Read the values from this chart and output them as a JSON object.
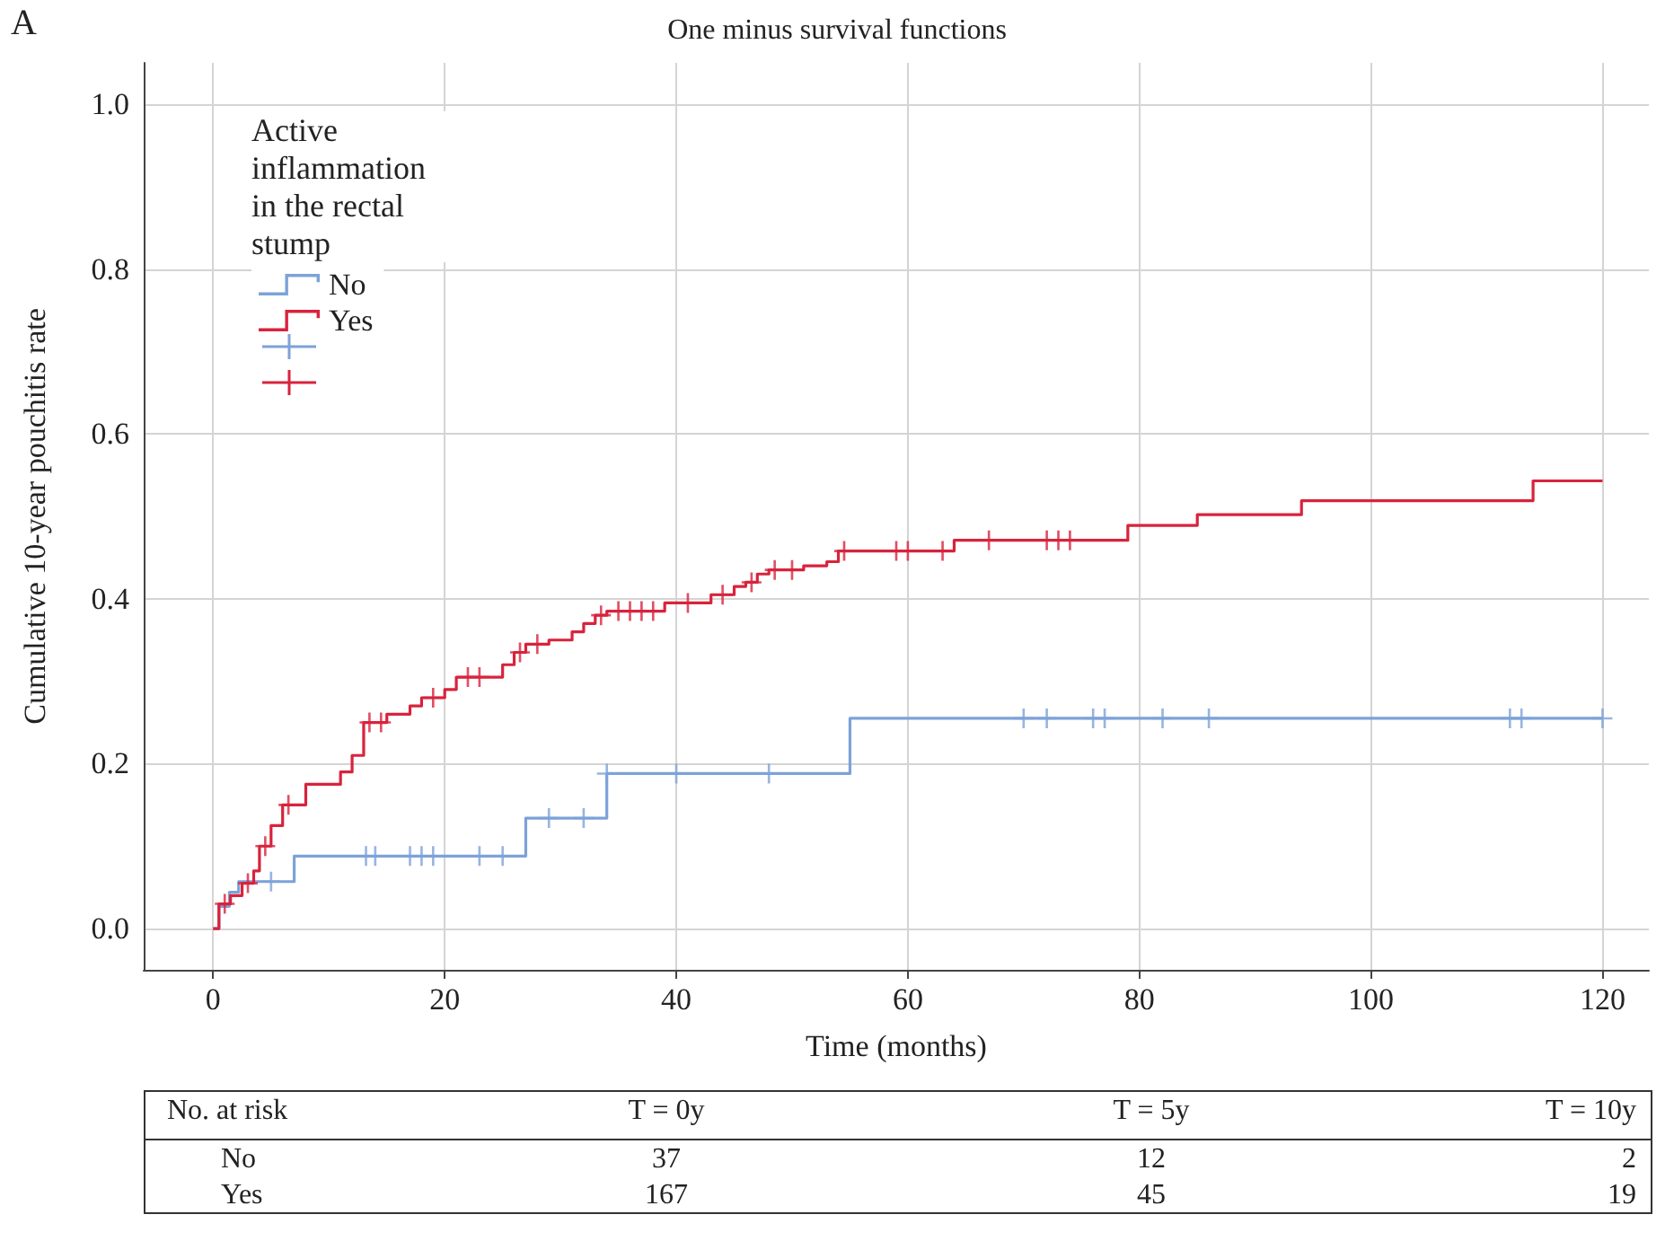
{
  "chart_data": {
    "type": "step",
    "title": "One minus survival functions",
    "xlabel": "Time (months)",
    "ylabel": "Cumulative 10-year pouchitis rate",
    "legend_title": "Active inflammation in the rectal stump",
    "legend": "top left",
    "grid": true,
    "xlim": [
      -6,
      124
    ],
    "xticks": [
      0,
      20,
      40,
      60,
      80,
      100,
      120
    ],
    "ylim": [
      -0.05,
      1.05
    ],
    "yticks": [
      {
        "value": 0,
        "label": "0.0"
      },
      {
        "value": 0.2,
        "label": "0.2"
      },
      {
        "value": 0.4,
        "label": "0.4"
      },
      {
        "value": 0.6,
        "label": "0.6"
      },
      {
        "value": 0.8,
        "label": "0.8"
      },
      {
        "value": 1,
        "label": "1.0"
      }
    ],
    "annotations": [
      "A",
      "No. at risk",
      "T = 0y",
      "T = 5y",
      "T = 10y",
      "No",
      "37",
      "12",
      "2",
      "Yes",
      "167",
      "45",
      "19"
    ],
    "series": [
      {
        "name": "No",
        "color": "#7da2d8",
        "x": [
          0,
          0.5,
          1.4,
          2.2,
          7,
          27,
          34,
          55,
          120
        ],
        "values": [
          0,
          0.027,
          0.044,
          0.057,
          0.088,
          0.134,
          0.188,
          0.255,
          0.255
        ]
      },
      {
        "name": "Yes",
        "color": "#d8233c",
        "x": [
          0,
          0.5,
          1.5,
          2.5,
          3.5,
          4,
          5,
          6,
          8,
          11,
          12,
          13,
          15,
          17,
          18,
          20,
          21,
          25,
          26,
          27,
          29,
          31,
          32,
          33,
          34,
          39,
          43,
          45,
          46,
          47,
          48,
          51,
          53,
          54,
          64,
          79,
          85,
          94,
          114,
          120
        ],
        "values": [
          0,
          0.03,
          0.04,
          0.055,
          0.07,
          0.1,
          0.125,
          0.15,
          0.175,
          0.19,
          0.21,
          0.25,
          0.26,
          0.27,
          0.28,
          0.29,
          0.305,
          0.32,
          0.335,
          0.345,
          0.35,
          0.36,
          0.37,
          0.38,
          0.385,
          0.395,
          0.405,
          0.415,
          0.42,
          0.43,
          0.435,
          0.44,
          0.445,
          0.458,
          0.471,
          0.489,
          0.502,
          0.519,
          0.543,
          0.543
        ]
      },
      {
        "type": "scatter",
        "marker": "cross",
        "color": "#7da2d8",
        "x": [
          5,
          13.2,
          14,
          17,
          18,
          19,
          23,
          25,
          29,
          32,
          34,
          40,
          48,
          70,
          72,
          76,
          77,
          82,
          86,
          112,
          113,
          120
        ],
        "values": [
          0.057,
          0.088,
          0.088,
          0.088,
          0.088,
          0.088,
          0.088,
          0.088,
          0.134,
          0.134,
          0.188,
          0.188,
          0.188,
          0.255,
          0.255,
          0.255,
          0.255,
          0.255,
          0.255,
          0.255,
          0.255,
          0.255
        ]
      },
      {
        "type": "scatter",
        "marker": "cross",
        "color": "#d8233c",
        "x": [
          1,
          3,
          4.5,
          6.5,
          13.5,
          14.5,
          19,
          22,
          23,
          26.5,
          28,
          33.5,
          35,
          36,
          37,
          38,
          41,
          44,
          46.5,
          48.5,
          50,
          54.5,
          59,
          60,
          63,
          67,
          72,
          73,
          74
        ],
        "values": [
          0.03,
          0.055,
          0.1,
          0.15,
          0.25,
          0.25,
          0.28,
          0.305,
          0.305,
          0.335,
          0.345,
          0.38,
          0.385,
          0.385,
          0.385,
          0.385,
          0.395,
          0.405,
          0.42,
          0.435,
          0.435,
          0.458,
          0.458,
          0.458,
          0.458,
          0.471,
          0.471,
          0.471,
          0.471
        ]
      }
    ]
  }
}
